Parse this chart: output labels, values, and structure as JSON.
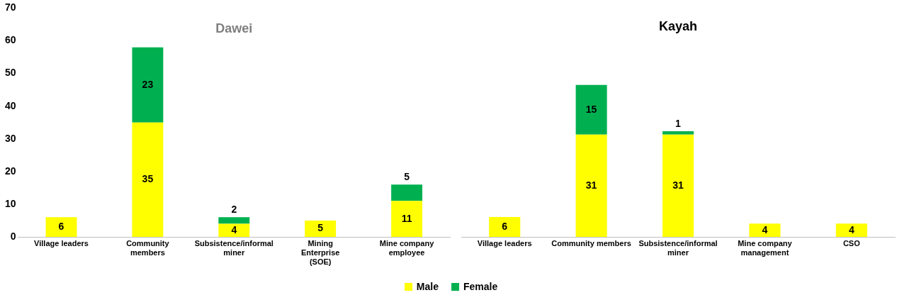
{
  "chart_data": [
    {
      "type": "bar",
      "title": "Dawei",
      "categories": [
        "Village leaders",
        "Community members",
        "Subsistence/informal miner",
        "Mining Enterprise (SOE)",
        "Mine company employee"
      ],
      "stacked": true,
      "data_labels": true,
      "legend": "bottom",
      "grid": false,
      "ylim": [
        0,
        70
      ],
      "yticks": [
        0,
        10,
        20,
        30,
        40,
        50,
        60,
        70
      ],
      "series": [
        {
          "name": "Male",
          "color": "#ffff00",
          "values": [
            6,
            35,
            4,
            5,
            11
          ]
        },
        {
          "name": "Female",
          "color": "#00b050",
          "values": [
            null,
            23,
            2,
            null,
            5
          ]
        }
      ]
    },
    {
      "type": "bar",
      "title": "Kayah",
      "categories": [
        "Village leaders",
        "Community members",
        "Subsistence/informal miner",
        "Mine company management",
        "CSO"
      ],
      "stacked": true,
      "data_labels": true,
      "legend": "bottom",
      "grid": false,
      "ylim": [
        0,
        70
      ],
      "yticks": [
        0,
        10,
        20,
        30,
        40,
        50,
        60,
        70
      ],
      "tick_labels": "x",
      "series": [
        {
          "name": "Male",
          "color": "#ffff00",
          "values": [
            6,
            31,
            31,
            4,
            4
          ]
        },
        {
          "name": "Female",
          "color": "#00b050",
          "values": [
            null,
            15,
            1,
            null,
            null
          ]
        }
      ]
    }
  ]
}
